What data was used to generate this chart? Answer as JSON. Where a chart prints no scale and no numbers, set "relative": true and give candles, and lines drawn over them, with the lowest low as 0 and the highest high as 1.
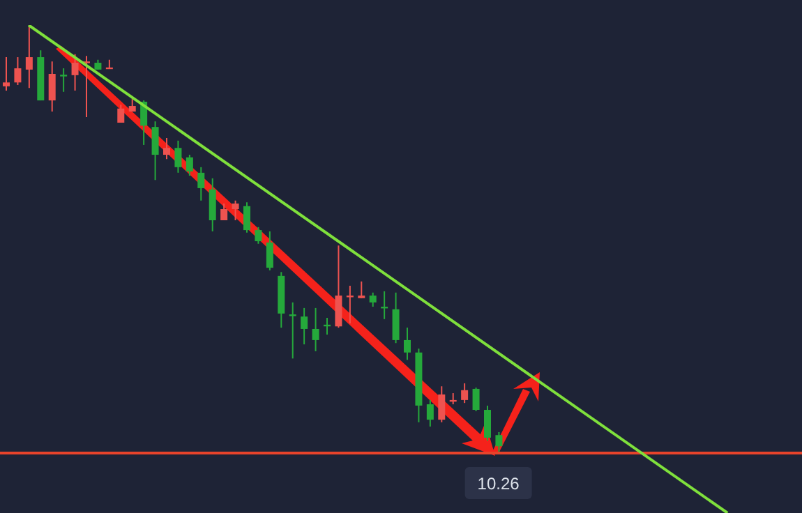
{
  "chart_data": {
    "type": "candlestick",
    "relative": true,
    "annotations": [
      "10.26"
    ],
    "categories": [
      null,
      null,
      null,
      null,
      null,
      null,
      null,
      null,
      null,
      null,
      null,
      null,
      null,
      null,
      null,
      null,
      null,
      null,
      null,
      null,
      null,
      null,
      null,
      null,
      null,
      null,
      null,
      null,
      null,
      null,
      null,
      null,
      null,
      null,
      null,
      null,
      null,
      null,
      null,
      null,
      null,
      null,
      null,
      null,
      null,
      null,
      null,
      null,
      null,
      null,
      null,
      null,
      null,
      null,
      null,
      null,
      null,
      null,
      null,
      null,
      null,
      null,
      null,
      null,
      null,
      null,
      null,
      null,
      null,
      null
    ],
    "ohlc": [
      [
        0.857,
        0.925,
        0.847,
        0.866
      ],
      [
        0.866,
        0.925,
        0.86,
        0.899
      ],
      [
        0.896,
        1,
        0.853,
        0.925
      ],
      [
        0.925,
        0.941,
        0.824,
        0.824
      ],
      [
        0.824,
        0.915,
        0.798,
        0.886
      ],
      [
        0.884,
        0.899,
        0.844,
        0.883
      ],
      [
        0.883,
        0.932,
        0.847,
        0.912
      ],
      [
        0.912,
        0.928,
        0.785,
        0.915
      ],
      [
        0.912,
        0.919,
        0.896,
        0.896
      ],
      [
        0.899,
        0.919,
        0.899,
        0.901
      ],
      [
        0.772,
        0.814,
        0.772,
        0.805
      ],
      [
        0.798,
        0.827,
        0.798,
        0.811
      ],
      [
        0.821,
        0.824,
        0.72,
        0.765
      ],
      [
        0.762,
        0.775,
        0.638,
        0.697
      ],
      [
        0.697,
        0.736,
        0.687,
        0.713
      ],
      [
        0.713,
        0.73,
        0.655,
        0.668
      ],
      [
        0.691,
        0.697,
        0.648,
        0.658
      ],
      [
        0.655,
        0.668,
        0.59,
        0.619
      ],
      [
        0.616,
        0.642,
        0.518,
        0.544
      ],
      [
        0.544,
        0.583,
        0.544,
        0.57
      ],
      [
        0.57,
        0.59,
        0.544,
        0.583
      ],
      [
        0.577,
        0.586,
        0.515,
        0.521
      ],
      [
        0.521,
        0.528,
        0.489,
        0.495
      ],
      [
        0.492,
        0.518,
        0.427,
        0.433
      ],
      [
        0.414,
        0.423,
        0.293,
        0.326
      ],
      [
        0.324,
        0.352,
        0.221,
        0.322
      ],
      [
        0.319,
        0.339,
        0.254,
        0.29
      ],
      [
        0.29,
        0.339,
        0.238,
        0.264
      ],
      [
        0.3,
        0.316,
        0.277,
        0.298
      ],
      [
        0.296,
        0.485,
        0.293,
        0.368
      ],
      [
        0.366,
        0.391,
        0.303,
        0.368
      ],
      [
        0.362,
        0.401,
        0.362,
        0.368
      ],
      [
        0.368,
        0.375,
        0.342,
        0.352
      ],
      [
        0.342,
        0.378,
        0.313,
        0.34
      ],
      [
        0.336,
        0.375,
        0.257,
        0.264
      ],
      [
        0.264,
        0.293,
        0.218,
        0.235
      ],
      [
        0.235,
        0.244,
        0.072,
        0.111
      ],
      [
        0.114,
        0.124,
        0.062,
        0.078
      ],
      [
        0.078,
        0.156,
        0.072,
        0.137
      ],
      [
        0.122,
        0.14,
        0.114,
        0.124
      ],
      [
        0.124,
        0.163,
        0.117,
        0.147
      ],
      [
        0.15,
        0.153,
        0.098,
        0.101
      ],
      [
        0.101,
        0.111,
        0.029,
        0.036
      ],
      [
        0.042,
        0.049,
        0,
        0.016
      ],
      null,
      null,
      null,
      null,
      null,
      null,
      null,
      null,
      null,
      null,
      null,
      null,
      null,
      null,
      null,
      null,
      null,
      null,
      null,
      null,
      null,
      null,
      null,
      null,
      null,
      null
    ],
    "colors": [
      "#ee5350",
      "#ee5350",
      "#ee5350",
      "#25a93b",
      "#ee5350",
      "#25a93b",
      "#ee5350",
      "#ee5350",
      "#25a93b",
      "#ee5350",
      "#ee5350",
      "#ee5350",
      "#25a93b",
      "#25a93b",
      "#ee5350",
      "#25a93b",
      "#25a93b",
      "#25a93b",
      "#25a93b",
      "#ee5350",
      "#ee5350",
      "#25a93b",
      "#25a93b",
      "#25a93b",
      "#25a93b",
      "#25a93b",
      "#25a93b",
      "#25a93b",
      "#25a93b",
      "#ee5350",
      "#ee5350",
      "#ee5350",
      "#25a93b",
      "#25a93b",
      "#25a93b",
      "#25a93b",
      "#25a93b",
      "#25a93b",
      "#ee5350",
      "#ee5350",
      "#ee5350",
      "#25a93b",
      "#25a93b",
      "#25a93b",
      null,
      null,
      null,
      null,
      null,
      null,
      null,
      null,
      null,
      null,
      null,
      null,
      null,
      null,
      null,
      null,
      null,
      null,
      null,
      null,
      null,
      null,
      null,
      null,
      null,
      null
    ],
    "series": [
      {
        "type": "line",
        "color": "#7fe03c",
        "values": [
          null,
          null,
          1,
          null,
          null,
          null,
          null,
          null,
          null,
          null,
          null,
          null,
          null,
          null,
          null,
          null,
          null,
          null,
          null,
          null,
          null,
          null,
          null,
          null,
          null,
          null,
          null,
          null,
          null,
          null,
          null,
          null,
          null,
          null,
          null,
          null,
          null,
          null,
          null,
          null,
          null,
          null,
          null,
          null,
          null,
          null,
          null,
          null,
          null,
          null,
          null,
          null,
          null,
          null,
          null,
          null,
          null,
          null,
          null,
          null,
          null,
          null,
          null,
          -0.14,
          null,
          null,
          null,
          null,
          null,
          null
        ]
      }
    ],
    "ref_lines": [
      {
        "axis": "y",
        "value": 0,
        "color": "#e8432b"
      }
    ]
  }
}
